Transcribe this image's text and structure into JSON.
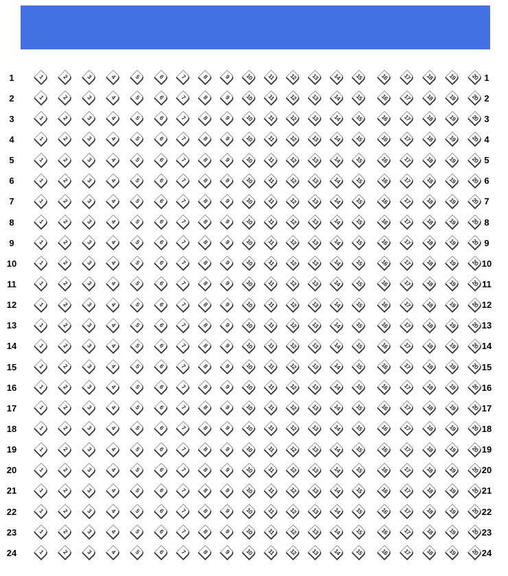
{
  "colors": {
    "banner_blue": "#4271E3",
    "seat_outline_dark": "#3a3a3a",
    "seat_outline_light": "#8a8a8a",
    "seat_number": "#2b2b2b",
    "row_label": "#000000"
  },
  "stage_banner": {
    "has_text": false
  },
  "rows": {
    "labels": [
      "1",
      "2",
      "3",
      "4",
      "5",
      "6",
      "7",
      "8",
      "9",
      "10",
      "11",
      "12",
      "13",
      "14",
      "15",
      "16",
      "17",
      "18",
      "19",
      "20",
      "21",
      "22",
      "23",
      "24"
    ]
  },
  "seats": {
    "groups": [
      [
        "1",
        "2",
        "3",
        "4",
        "5"
      ],
      [
        "6",
        "7",
        "8",
        "9",
        "10",
        "11",
        "12",
        "13",
        "14",
        "15"
      ],
      [
        "16",
        "17",
        "18",
        "19",
        "20"
      ]
    ]
  }
}
